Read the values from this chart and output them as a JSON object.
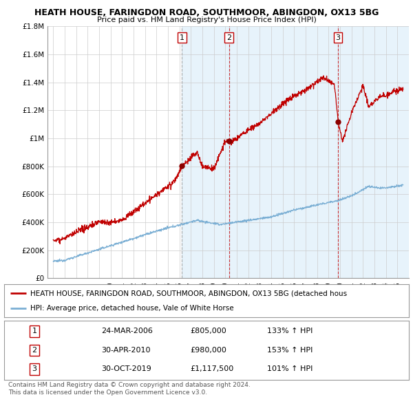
{
  "title1": "HEATH HOUSE, FARINGDON ROAD, SOUTHMOOR, ABINGDON, OX13 5BG",
  "title2": "Price paid vs. HM Land Registry's House Price Index (HPI)",
  "ylim": [
    0,
    1800000
  ],
  "yticks": [
    0,
    200000,
    400000,
    600000,
    800000,
    1000000,
    1200000,
    1400000,
    1600000,
    1800000
  ],
  "ytick_labels": [
    "£0",
    "£200K",
    "£400K",
    "£600K",
    "£800K",
    "£1M",
    "£1.2M",
    "£1.4M",
    "£1.6M",
    "£1.8M"
  ],
  "hpi_color": "#7bafd4",
  "price_color": "#c00000",
  "sale_marker_color": "#8b0000",
  "sale_dates": [
    2006.22,
    2010.33,
    2019.83
  ],
  "sale_prices": [
    805000,
    980000,
    1117500
  ],
  "sale_labels": [
    "1",
    "2",
    "3"
  ],
  "sale_vline_styles": [
    "--",
    "--",
    "--"
  ],
  "sale_vline_colors": [
    "#aaaaaa",
    "#dd4444",
    "#dd4444"
  ],
  "shade_color": "#d0e8f8",
  "legend_line1": "HEATH HOUSE, FARINGDON ROAD, SOUTHMOOR, ABINGDON, OX13 5BG (detached hous",
  "legend_line2": "HPI: Average price, detached house, Vale of White Horse",
  "table_rows": [
    [
      "1",
      "24-MAR-2006",
      "£805,000",
      "133% ↑ HPI"
    ],
    [
      "2",
      "30-APR-2010",
      "£980,000",
      "153% ↑ HPI"
    ],
    [
      "3",
      "30-OCT-2019",
      "£1,117,500",
      "101% ↑ HPI"
    ]
  ],
  "footer1": "Contains HM Land Registry data © Crown copyright and database right 2024.",
  "footer2": "This data is licensed under the Open Government Licence v3.0.",
  "background_color": "#ffffff",
  "grid_color": "#cccccc",
  "xstart": 1995,
  "xend": 2025
}
